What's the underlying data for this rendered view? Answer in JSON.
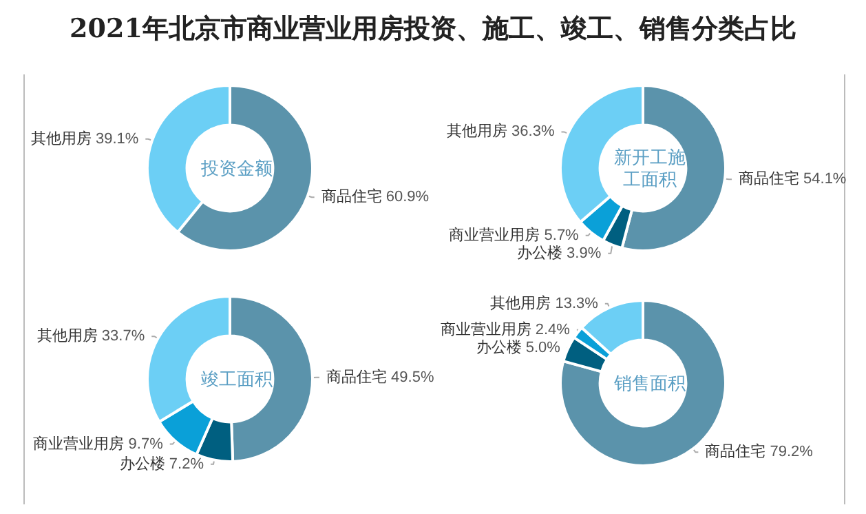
{
  "chart_data": [
    {
      "type": "donut",
      "title": "投资金额",
      "annotations": [
        "2021年北京市商业营业用房投资、施工、竣工、销售分类占比"
      ],
      "categories": [
        "商品住宅",
        "其他用房"
      ],
      "values": [
        60.9,
        39.1
      ],
      "value_labels": [
        "60.9%",
        "39.1%"
      ],
      "colors": [
        "#5b93ab",
        "#6ccff5"
      ]
    },
    {
      "type": "donut",
      "title": "新开工施工面积",
      "categories": [
        "商品住宅",
        "办公楼",
        "商业营业用房",
        "其他用房"
      ],
      "values": [
        54.1,
        3.9,
        5.7,
        36.3
      ],
      "value_labels": [
        "54.1%",
        "3.9%",
        "5.7%",
        "36.3%"
      ],
      "colors": [
        "#5b93ab",
        "#005f80",
        "#0aa0d8",
        "#6ccff5"
      ]
    },
    {
      "type": "donut",
      "title": "竣工面积",
      "categories": [
        "商品住宅",
        "办公楼",
        "商业营业用房",
        "其他用房"
      ],
      "values": [
        49.5,
        7.2,
        9.7,
        33.7
      ],
      "value_labels": [
        "49.5%",
        "7.2%",
        "9.7%",
        "33.7%"
      ],
      "colors": [
        "#5b93ab",
        "#005f80",
        "#0aa0d8",
        "#6ccff5"
      ]
    },
    {
      "type": "donut",
      "title": "销售面积",
      "categories": [
        "商品住宅",
        "办公楼",
        "商业营业用房",
        "其他用房"
      ],
      "values": [
        79.2,
        5.0,
        2.4,
        13.3
      ],
      "value_labels": [
        "79.2%",
        "5.0%",
        "2.4%",
        "13.3%"
      ],
      "colors": [
        "#5b93ab",
        "#005f80",
        "#0aa0d8",
        "#6ccff5"
      ]
    }
  ]
}
